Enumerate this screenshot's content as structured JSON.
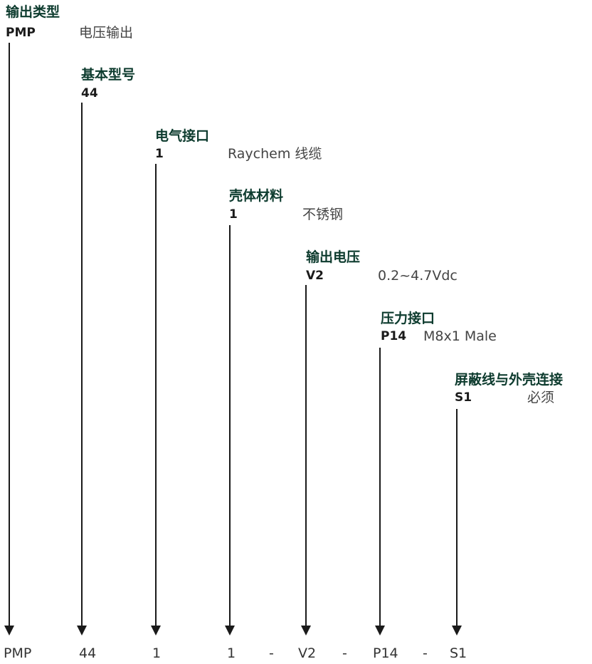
{
  "segments": [
    {
      "title": "输出类型",
      "code": "PMP",
      "desc": "电压输出"
    },
    {
      "title": "基本型号",
      "code": "44",
      "desc": ""
    },
    {
      "title": "电气接口",
      "code": "1",
      "desc": "Raychem 线缆"
    },
    {
      "title": "壳体材料",
      "code": "1",
      "desc": "不锈钢"
    },
    {
      "title": "输出电压",
      "code": "V2",
      "desc": "0.2~4.7Vdc"
    },
    {
      "title": "压力接口",
      "code": "P14",
      "desc": "M8x1 Male"
    },
    {
      "title": "屏蔽线与外壳连接",
      "code": "S1",
      "desc": "必须"
    }
  ],
  "bottom_row": {
    "items": [
      "PMP",
      "44",
      "1",
      "1",
      "V2",
      "P14",
      "S1"
    ],
    "separator": "-"
  },
  "colors": {
    "title": "#0d3b2e",
    "arrow": "#1a1a1a"
  }
}
